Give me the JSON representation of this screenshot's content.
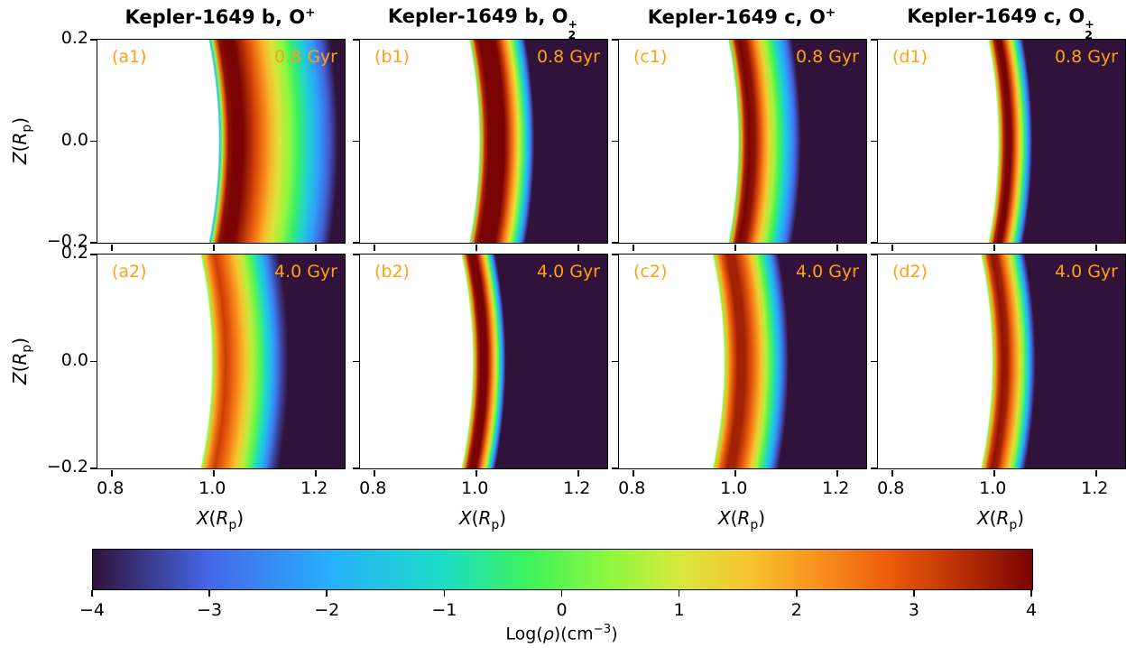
{
  "chart_data": {
    "type": "heatmap",
    "layout": "2 rows x 4 columns of X-Z slices plus one horizontal colorbar",
    "columns": [
      {
        "title_prefix": "Kepler-1649 b, O",
        "title_sub": "",
        "title_sup": "+"
      },
      {
        "title_prefix": "Kepler-1649 b, O",
        "title_sub": "2",
        "title_sup": "+"
      },
      {
        "title_prefix": "Kepler-1649 c, O",
        "title_sub": "",
        "title_sup": "+"
      },
      {
        "title_prefix": "Kepler-1649 c, O",
        "title_sub": "2",
        "title_sup": "+"
      }
    ],
    "x_axis": {
      "label_parts": {
        "var": "X",
        "arg": "R",
        "sub": "p"
      },
      "ticks": [
        "0.8",
        "1.0",
        "1.2"
      ],
      "tick_values": [
        0.8,
        1.0,
        1.2
      ],
      "range": [
        0.773,
        1.258
      ]
    },
    "y_axis": {
      "label_parts": {
        "var": "Z",
        "arg": "R",
        "sub": "p"
      },
      "ticks": [
        "0.2",
        "0.0",
        "−0.2"
      ],
      "tick_values": [
        0.2,
        0.0,
        -0.2
      ],
      "range": [
        0.2,
        -0.2
      ]
    },
    "colorbar": {
      "ticks": [
        "−4",
        "−3",
        "−2",
        "−1",
        "0",
        "1",
        "2",
        "3",
        "4"
      ],
      "tick_values": [
        -4,
        -3,
        -2,
        -1,
        0,
        1,
        2,
        3,
        4
      ],
      "range": [
        -4,
        4
      ],
      "label_parts": {
        "p1": "Log(",
        "rho": "ρ",
        "p2": ")(cm",
        "sup": "−3",
        "p3": ")"
      }
    },
    "colormap_anchors": [
      [
        -4.0,
        "#30123b"
      ],
      [
        -3.0,
        "#4568e9"
      ],
      [
        -2.0,
        "#28aefd"
      ],
      [
        -1.0,
        "#1bdec5"
      ],
      [
        -0.3,
        "#3df25b"
      ],
      [
        0.4,
        "#8df83f"
      ],
      [
        1.0,
        "#d8e83b"
      ],
      [
        1.6,
        "#f7c32e"
      ],
      [
        2.2,
        "#f98f1d"
      ],
      [
        2.8,
        "#ea5b0b"
      ],
      [
        3.3,
        "#c23605"
      ],
      [
        4.0,
        "#7a0403"
      ]
    ],
    "panels": [
      {
        "id": "a1",
        "label": "(a1)",
        "age": "0.8 Gyr",
        "grid": [
          0,
          0
        ],
        "masked_white_below_r": 1.012,
        "radial_profile_log_rho": [
          [
            1.013,
            -1.5
          ],
          [
            1.018,
            0.5
          ],
          [
            1.023,
            2.5
          ],
          [
            1.03,
            3.8
          ],
          [
            1.04,
            4.0
          ],
          [
            1.058,
            4.0
          ],
          [
            1.07,
            3.6
          ],
          [
            1.085,
            3.0
          ],
          [
            1.1,
            2.4
          ],
          [
            1.115,
            1.7
          ],
          [
            1.13,
            1.1
          ],
          [
            1.15,
            0.4
          ],
          [
            1.168,
            -0.4
          ],
          [
            1.188,
            -1.3
          ],
          [
            1.207,
            -2.2
          ],
          [
            1.226,
            -3.1
          ],
          [
            1.245,
            -4.0
          ]
        ]
      },
      {
        "id": "b1",
        "label": "(b1)",
        "age": "0.8 Gyr",
        "grid": [
          0,
          1
        ],
        "masked_white_below_r": 1.008,
        "radial_profile_log_rho": [
          [
            1.009,
            0.0
          ],
          [
            1.013,
            2.0
          ],
          [
            1.018,
            3.5
          ],
          [
            1.026,
            4.0
          ],
          [
            1.056,
            4.0
          ],
          [
            1.064,
            3.4
          ],
          [
            1.071,
            2.6
          ],
          [
            1.078,
            1.8
          ],
          [
            1.084,
            1.0
          ],
          [
            1.09,
            0.2
          ],
          [
            1.096,
            -0.8
          ],
          [
            1.102,
            -1.8
          ],
          [
            1.108,
            -2.9
          ],
          [
            1.115,
            -4.0
          ]
        ]
      },
      {
        "id": "c1",
        "label": "(c1)",
        "age": "0.8 Gyr",
        "grid": [
          0,
          2
        ],
        "masked_white_below_r": 1.008,
        "radial_profile_log_rho": [
          [
            1.009,
            0.0
          ],
          [
            1.014,
            2.0
          ],
          [
            1.02,
            3.6
          ],
          [
            1.028,
            4.0
          ],
          [
            1.04,
            3.8
          ],
          [
            1.05,
            3.0
          ],
          [
            1.058,
            2.2
          ],
          [
            1.067,
            1.4
          ],
          [
            1.077,
            0.6
          ],
          [
            1.088,
            -0.3
          ],
          [
            1.098,
            -1.2
          ],
          [
            1.108,
            -2.1
          ],
          [
            1.118,
            -3.0
          ],
          [
            1.13,
            -4.0
          ]
        ]
      },
      {
        "id": "d1",
        "label": "(d1)",
        "age": "0.8 Gyr",
        "grid": [
          0,
          3
        ],
        "masked_white_below_r": 1.01,
        "radial_profile_log_rho": [
          [
            1.011,
            0.5
          ],
          [
            1.015,
            2.2
          ],
          [
            1.02,
            3.6
          ],
          [
            1.026,
            4.0
          ],
          [
            1.034,
            4.0
          ],
          [
            1.04,
            3.2
          ],
          [
            1.045,
            2.4
          ],
          [
            1.05,
            1.5
          ],
          [
            1.055,
            0.6
          ],
          [
            1.06,
            -0.5
          ],
          [
            1.065,
            -1.7
          ],
          [
            1.07,
            -2.9
          ],
          [
            1.076,
            -4.0
          ]
        ]
      },
      {
        "id": "a2",
        "label": "(a2)",
        "age": "4.0 Gyr",
        "grid": [
          1,
          0
        ],
        "masked_white_below_r": 0.998,
        "radial_profile_log_rho": [
          [
            1.0,
            0.5
          ],
          [
            1.006,
            1.8
          ],
          [
            1.014,
            2.6
          ],
          [
            1.024,
            3.2
          ],
          [
            1.034,
            2.9
          ],
          [
            1.048,
            2.3
          ],
          [
            1.062,
            1.6
          ],
          [
            1.076,
            0.8
          ],
          [
            1.09,
            0.0
          ],
          [
            1.102,
            -0.9
          ],
          [
            1.113,
            -1.8
          ],
          [
            1.124,
            -2.7
          ],
          [
            1.136,
            -3.5
          ],
          [
            1.148,
            -4.0
          ]
        ]
      },
      {
        "id": "b2",
        "label": "(b2)",
        "age": "4.0 Gyr",
        "grid": [
          1,
          1
        ],
        "masked_white_below_r": 0.995,
        "radial_profile_log_rho": [
          [
            0.996,
            0.5
          ],
          [
            1.0,
            2.2
          ],
          [
            1.005,
            3.6
          ],
          [
            1.01,
            4.0
          ],
          [
            1.022,
            4.0
          ],
          [
            1.028,
            3.2
          ],
          [
            1.033,
            2.3
          ],
          [
            1.038,
            1.4
          ],
          [
            1.042,
            0.5
          ],
          [
            1.046,
            -0.6
          ],
          [
            1.05,
            -1.8
          ],
          [
            1.054,
            -3.0
          ],
          [
            1.059,
            -4.0
          ]
        ]
      },
      {
        "id": "c2",
        "label": "(c2)",
        "age": "4.0 Gyr",
        "grid": [
          1,
          2
        ],
        "masked_white_below_r": 0.98,
        "radial_profile_log_rho": [
          [
            0.981,
            0.5
          ],
          [
            0.987,
            1.8
          ],
          [
            0.995,
            2.8
          ],
          [
            1.006,
            3.6
          ],
          [
            1.02,
            3.6
          ],
          [
            1.032,
            3.0
          ],
          [
            1.043,
            2.3
          ],
          [
            1.053,
            1.5
          ],
          [
            1.062,
            0.7
          ],
          [
            1.071,
            -0.2
          ],
          [
            1.08,
            -1.2
          ],
          [
            1.089,
            -2.2
          ],
          [
            1.097,
            -3.2
          ],
          [
            1.106,
            -4.0
          ]
        ]
      },
      {
        "id": "d2",
        "label": "(d2)",
        "age": "4.0 Gyr",
        "grid": [
          1,
          3
        ],
        "masked_white_below_r": 0.998,
        "radial_profile_log_rho": [
          [
            0.999,
            0.5
          ],
          [
            1.004,
            2.0
          ],
          [
            1.01,
            3.2
          ],
          [
            1.018,
            3.8
          ],
          [
            1.028,
            3.6
          ],
          [
            1.036,
            2.8
          ],
          [
            1.044,
            2.0
          ],
          [
            1.051,
            1.2
          ],
          [
            1.058,
            0.3
          ],
          [
            1.064,
            -0.8
          ],
          [
            1.07,
            -2.0
          ],
          [
            1.076,
            -3.2
          ],
          [
            1.082,
            -4.0
          ]
        ]
      }
    ],
    "annotation_color": "#ffa010",
    "background_low_color": "#30123b",
    "masked_color": "#ffffff"
  },
  "labels": {
    "cb": {
      "p1": "Log(",
      "rho": "ρ",
      "p2": ")(cm",
      "sup": "−3",
      "p3": ")"
    }
  }
}
